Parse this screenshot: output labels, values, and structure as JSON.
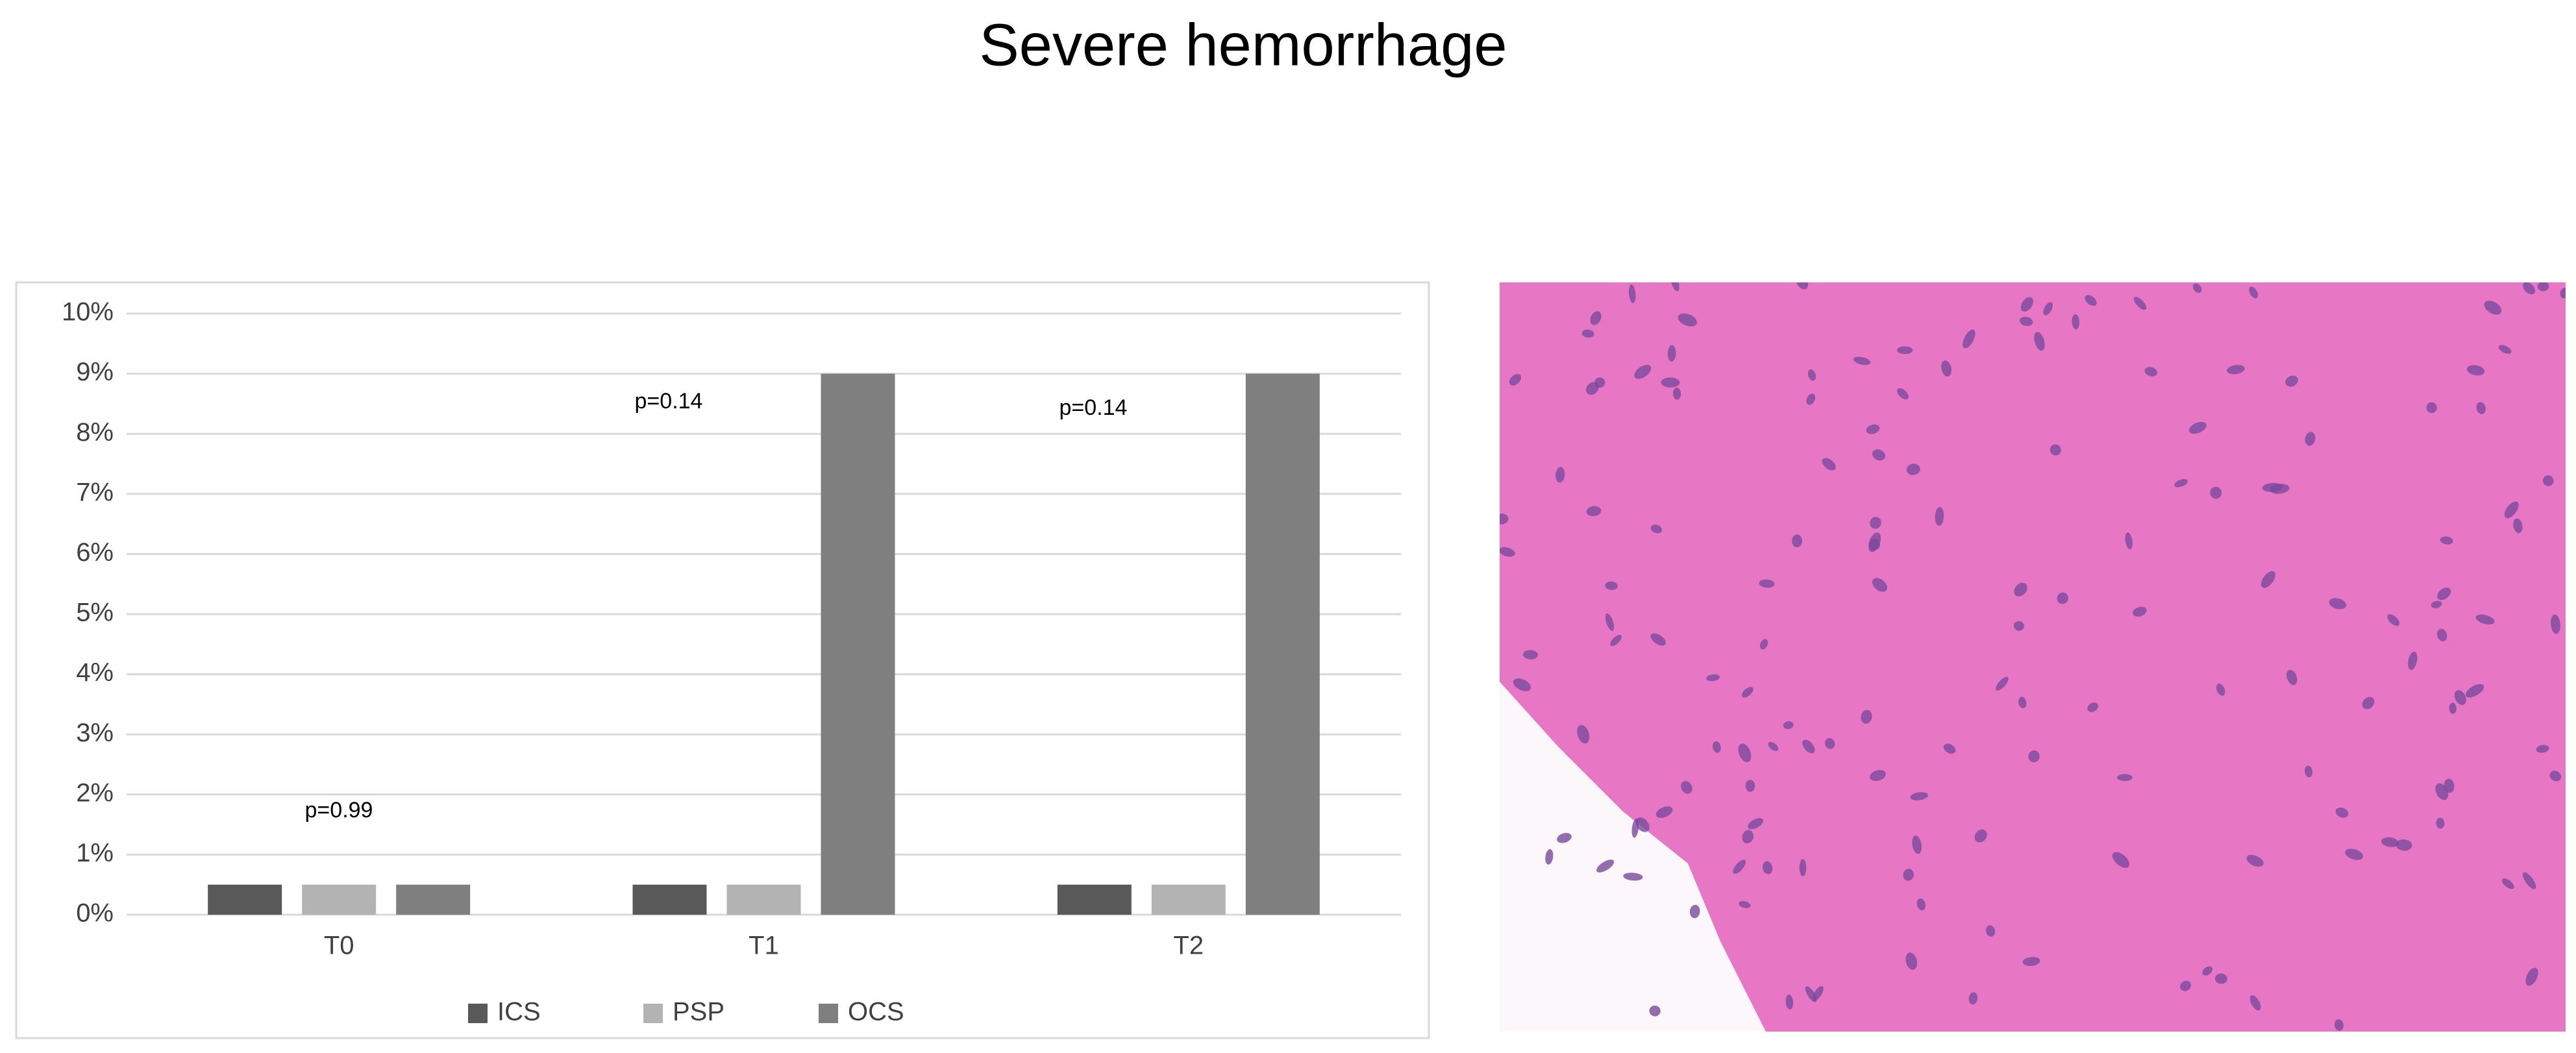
{
  "chart_data": {
    "type": "bar",
    "title": "Severe hemorrhage",
    "categories": [
      "T0",
      "T1",
      "T2"
    ],
    "series": [
      {
        "name": "ICS",
        "color": "#595959",
        "values": [
          0.5,
          0.5,
          0.5
        ]
      },
      {
        "name": "PSP",
        "color": "#b3b3b3",
        "values": [
          0.5,
          0.5,
          0.5
        ]
      },
      {
        "name": "OCS",
        "color": "#7f7f7f",
        "values": [
          0.5,
          9,
          9
        ]
      }
    ],
    "annotations": [
      "p=0.99",
      "p=0.14",
      "p=0.14"
    ],
    "ylim": [
      0,
      10
    ],
    "yticks": [
      {
        "value": 0,
        "label": "0%"
      },
      {
        "value": 1,
        "label": "1%"
      },
      {
        "value": 2,
        "label": "2%"
      },
      {
        "value": 3,
        "label": "3%"
      },
      {
        "value": 4,
        "label": "4%"
      },
      {
        "value": 5,
        "label": "5%"
      },
      {
        "value": 6,
        "label": "6%"
      },
      {
        "value": 7,
        "label": "7%"
      },
      {
        "value": 8,
        "label": "8%"
      },
      {
        "value": 9,
        "label": "9%"
      },
      {
        "value": 10,
        "label": "10%"
      }
    ],
    "grid": true,
    "legend": "bottom"
  }
}
